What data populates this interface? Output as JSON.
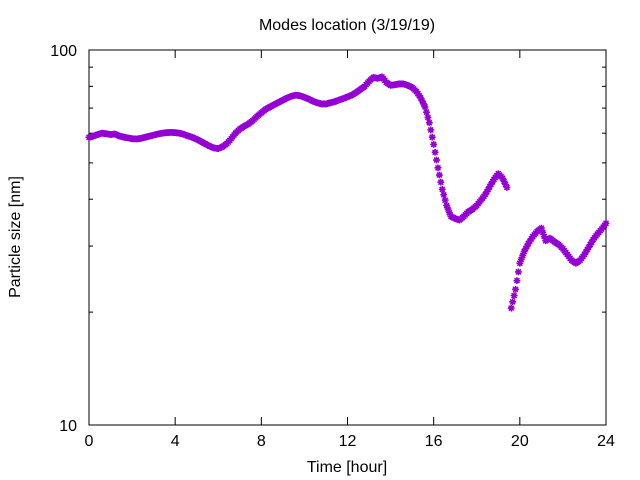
{
  "chart_data": {
    "type": "scatter",
    "title": "Modes location (3/19/19)",
    "xlabel": "Time [hour]",
    "ylabel": "Particle size [nm]",
    "xlim": [
      0,
      24
    ],
    "ylim": [
      10,
      100
    ],
    "yscale": "log",
    "x_ticks": [
      0,
      4,
      8,
      12,
      16,
      20,
      24
    ],
    "x_tick_labels": [
      "0",
      "4",
      "8",
      "12",
      "16",
      "20",
      "24"
    ],
    "y_ticks": [
      10,
      100
    ],
    "y_tick_labels": [
      "10",
      "100"
    ],
    "grid": false,
    "legend": "none",
    "marker_color": "#9400d3",
    "series": [
      {
        "x": [
          0.0,
          0.2,
          0.4,
          0.6,
          0.8,
          1.0,
          1.2,
          1.4,
          1.6,
          1.8,
          2.0,
          2.2,
          2.4,
          2.6,
          2.8,
          3.0,
          3.2,
          3.4,
          3.6,
          3.8,
          4.0,
          4.2,
          4.4,
          4.6,
          4.8,
          5.0,
          5.2,
          5.4,
          5.6,
          5.8,
          6.0,
          6.2,
          6.4,
          6.6,
          6.8,
          7.0,
          7.2,
          7.4,
          7.6,
          7.8,
          8.0,
          8.2,
          8.4,
          8.6,
          8.8,
          9.0,
          9.2,
          9.4,
          9.6,
          9.8,
          10.0,
          10.2,
          10.4,
          10.6,
          10.8,
          11.0,
          11.2,
          11.4,
          11.6,
          11.8,
          12.0,
          12.2,
          12.4,
          12.6,
          12.8,
          13.0,
          13.2,
          13.4,
          13.6,
          13.8,
          14.0,
          14.2,
          14.4,
          14.6,
          14.8,
          15.0,
          15.2,
          15.4,
          15.6,
          15.8,
          16.0,
          16.2,
          16.4,
          16.6,
          16.8,
          17.0,
          17.2,
          17.4,
          17.6,
          17.8,
          18.0,
          18.2,
          18.4,
          18.6,
          18.8,
          19.0,
          19.2,
          19.4
        ],
        "y": [
          58.5,
          58.9,
          59.5,
          60.0,
          59.8,
          59.5,
          59.7,
          59.0,
          58.6,
          58.3,
          58.0,
          57.9,
          58.1,
          58.5,
          58.9,
          59.3,
          59.7,
          60.0,
          60.2,
          60.3,
          60.2,
          60.0,
          59.6,
          59.0,
          58.5,
          57.8,
          57.0,
          56.2,
          55.4,
          54.8,
          54.6,
          55.2,
          56.3,
          58.0,
          60.0,
          61.5,
          62.6,
          63.5,
          64.8,
          66.5,
          68.0,
          69.5,
          70.5,
          71.5,
          72.5,
          73.5,
          74.5,
          75.3,
          75.8,
          75.5,
          74.8,
          74.0,
          73.0,
          72.3,
          71.8,
          71.8,
          72.3,
          72.8,
          73.5,
          74.2,
          75.0,
          75.8,
          77.0,
          78.5,
          80.0,
          82.5,
          84.5,
          84.0,
          84.8,
          82.0,
          80.5,
          80.8,
          81.2,
          81.2,
          80.5,
          79.5,
          77.5,
          74.5,
          70.5,
          64.0,
          56.0,
          48.5,
          42.5,
          38.5,
          36.0,
          35.5,
          35.2,
          36.0,
          37.0,
          37.6,
          38.5,
          39.8,
          41.2,
          43.2,
          45.2,
          46.8,
          45.5,
          43.0
        ]
      },
      {
        "x": [
          19.6,
          19.8,
          20.0,
          20.2,
          20.4,
          20.6,
          20.8,
          21.0,
          21.2,
          21.4,
          21.6,
          21.8,
          22.0,
          22.2,
          22.4,
          22.6,
          22.8,
          23.0,
          23.2,
          23.4,
          23.6,
          23.8,
          24.0
        ],
        "y": [
          20.5,
          23.0,
          27.0,
          29.0,
          30.5,
          31.8,
          32.8,
          33.5,
          31.0,
          31.5,
          30.8,
          30.3,
          29.5,
          28.5,
          27.5,
          27.0,
          27.5,
          28.5,
          29.8,
          31.2,
          32.3,
          33.3,
          34.5
        ]
      }
    ]
  }
}
